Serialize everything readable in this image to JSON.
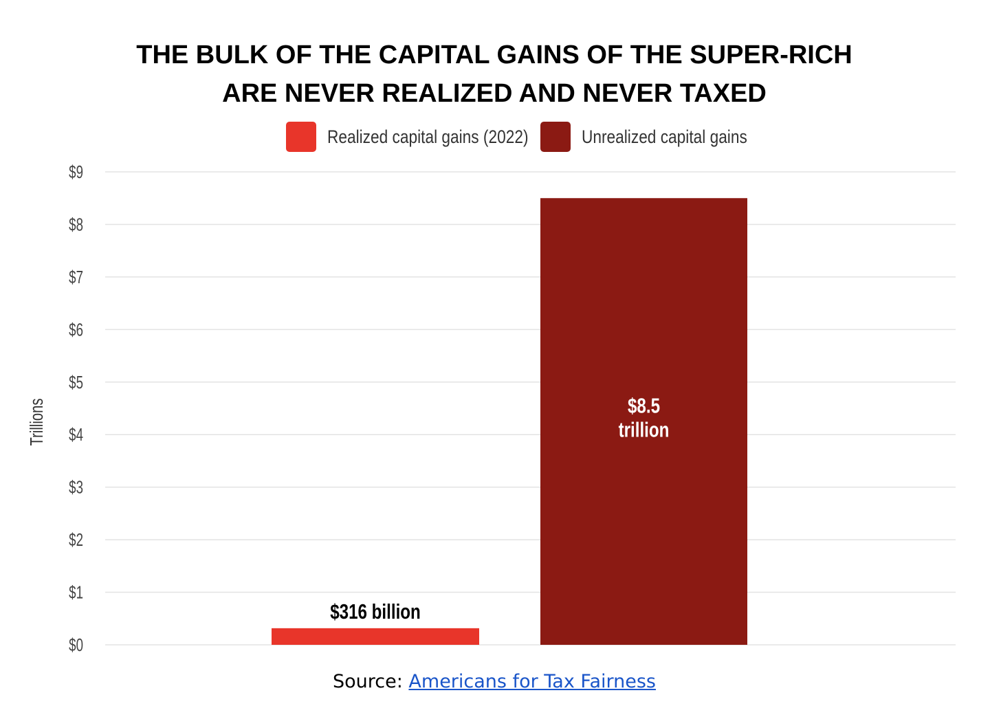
{
  "chart_data": {
    "type": "bar",
    "title": [
      "THE BULK OF THE CAPITAL GAINS OF THE SUPER-RICH",
      "ARE NEVER REALIZED AND NEVER TAXED"
    ],
    "ylabel": "Trillions",
    "ylim": [
      0,
      9
    ],
    "yticks": [
      "$0",
      "$1",
      "$2",
      "$3",
      "$4",
      "$5",
      "$6",
      "$7",
      "$8",
      "$9"
    ],
    "grid": true,
    "legend_position": "top",
    "series": [
      {
        "name": "Realized capital gains (2022)",
        "value": 0.316,
        "label": [
          "$316 billion"
        ],
        "label_position": "above",
        "color": "#e8352a"
      },
      {
        "name": "Unrealized capital gains",
        "value": 8.5,
        "label": [
          "$8.5",
          "trillion"
        ],
        "label_position": "inside",
        "color": "#8b1a13"
      }
    ]
  },
  "source": {
    "prefix": "Source: ",
    "link_text": "Americans for Tax Fairness"
  }
}
